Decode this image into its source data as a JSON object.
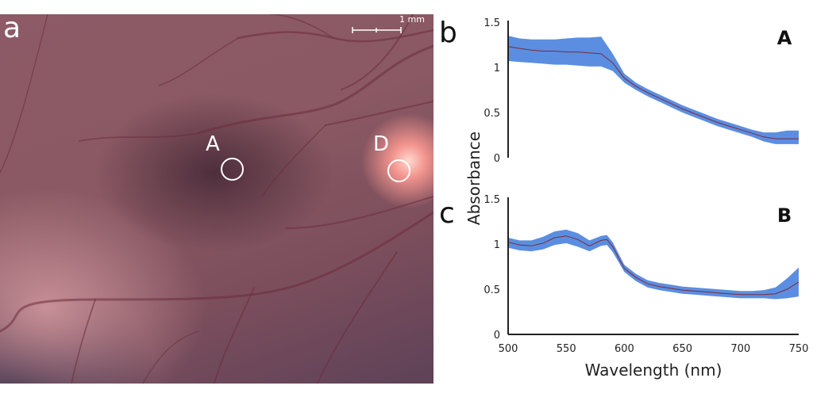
{
  "figure": {
    "panel_a_letter": "a",
    "panel_b_letter": "b",
    "panel_c_letter": "c",
    "location_a": "A",
    "location_d": "D",
    "scale_bar_label": "1 mm"
  },
  "colors": {
    "band": "#5b8ee0",
    "mean_line": "#7a2a3a",
    "axis": "#222222"
  },
  "chart_data": [
    {
      "type": "area",
      "series_label": "A",
      "xlabel": "Wavelength (nm)",
      "ylabel": "Absorbance",
      "xlim": [
        500,
        750
      ],
      "ylim": [
        0,
        1.5
      ],
      "yticks": [
        "1.5",
        "1",
        "0.5",
        "0"
      ],
      "x": [
        500,
        510,
        520,
        530,
        540,
        550,
        560,
        570,
        580,
        590,
        600,
        610,
        620,
        630,
        640,
        650,
        660,
        670,
        680,
        690,
        700,
        710,
        720,
        730,
        740,
        750
      ],
      "mean": [
        1.23,
        1.21,
        1.19,
        1.18,
        1.18,
        1.17,
        1.17,
        1.16,
        1.15,
        1.05,
        0.88,
        0.79,
        0.72,
        0.66,
        0.6,
        0.54,
        0.49,
        0.44,
        0.39,
        0.35,
        0.31,
        0.27,
        0.23,
        0.21,
        0.21,
        0.21
      ],
      "upper": [
        1.35,
        1.32,
        1.31,
        1.31,
        1.31,
        1.32,
        1.33,
        1.33,
        1.34,
        1.15,
        0.93,
        0.83,
        0.76,
        0.7,
        0.64,
        0.58,
        0.53,
        0.48,
        0.43,
        0.39,
        0.35,
        0.31,
        0.28,
        0.28,
        0.3,
        0.3
      ],
      "lower": [
        1.07,
        1.06,
        1.05,
        1.04,
        1.03,
        1.03,
        1.02,
        1.01,
        1.01,
        0.96,
        0.83,
        0.75,
        0.68,
        0.62,
        0.56,
        0.5,
        0.45,
        0.4,
        0.35,
        0.31,
        0.27,
        0.23,
        0.18,
        0.15,
        0.15,
        0.15
      ]
    },
    {
      "type": "area",
      "series_label": "B",
      "xlabel": "Wavelength (nm)",
      "ylabel": "Absorbance",
      "xlim": [
        500,
        750
      ],
      "ylim": [
        0,
        1.5
      ],
      "yticks": [
        "1.5",
        "1",
        "0.5",
        "0"
      ],
      "xticks": [
        "500",
        "550",
        "600",
        "650",
        "700",
        "750"
      ],
      "x": [
        500,
        510,
        520,
        530,
        540,
        550,
        560,
        570,
        580,
        585,
        590,
        600,
        610,
        620,
        630,
        640,
        650,
        660,
        670,
        680,
        690,
        700,
        710,
        720,
        730,
        740,
        750
      ],
      "mean": [
        1.02,
        0.99,
        0.98,
        1.01,
        1.07,
        1.09,
        1.05,
        0.98,
        1.04,
        1.05,
        0.97,
        0.73,
        0.63,
        0.56,
        0.53,
        0.51,
        0.49,
        0.48,
        0.47,
        0.46,
        0.45,
        0.44,
        0.44,
        0.44,
        0.45,
        0.5,
        0.58
      ],
      "upper": [
        1.07,
        1.04,
        1.04,
        1.08,
        1.14,
        1.16,
        1.12,
        1.04,
        1.09,
        1.1,
        1.02,
        0.77,
        0.67,
        0.6,
        0.57,
        0.55,
        0.53,
        0.52,
        0.51,
        0.5,
        0.49,
        0.48,
        0.48,
        0.49,
        0.52,
        0.62,
        0.74
      ],
      "lower": [
        0.96,
        0.93,
        0.92,
        0.94,
        0.99,
        1.01,
        0.97,
        0.92,
        0.98,
        0.99,
        0.91,
        0.69,
        0.59,
        0.52,
        0.49,
        0.47,
        0.45,
        0.44,
        0.43,
        0.42,
        0.41,
        0.4,
        0.4,
        0.4,
        0.39,
        0.4,
        0.42
      ]
    }
  ]
}
